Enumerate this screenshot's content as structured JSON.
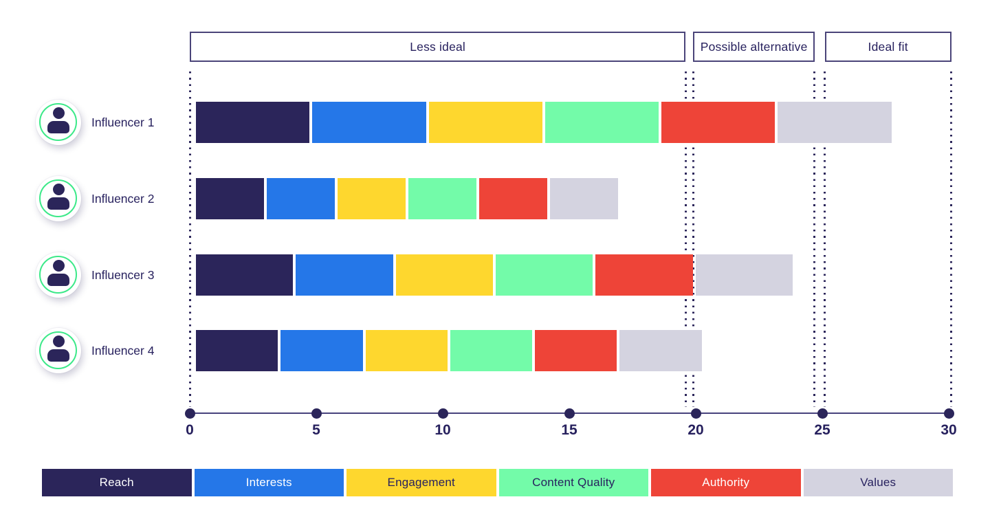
{
  "background": "#ffffff",
  "colors": {
    "text_navy": "#27215e",
    "zone_border": "#4a4479",
    "axis_line": "#47427c",
    "guide_dots": "#2b255a",
    "avatar_ring_green": "#3ce989",
    "avatar_person": "#2b255a"
  },
  "chart_data": {
    "type": "bar",
    "stacked": true,
    "orientation": "horizontal",
    "title": "",
    "xlabel": "",
    "ylabel": "",
    "xlim": [
      0,
      30
    ],
    "x_ticks": [
      0,
      5,
      10,
      15,
      20,
      25,
      30
    ],
    "grid": "dotted vertical guides at zone edges",
    "legend_position": "bottom",
    "categories": [
      "Influencer 1",
      "Influencer 2",
      "Influencer 3",
      "Influencer 4"
    ],
    "series": [
      {
        "name": "Reach",
        "color": "#2b255a",
        "label_color": "#ffffff",
        "values": [
          4.6,
          2.8,
          3.95,
          3.35
        ]
      },
      {
        "name": "Interests",
        "color": "#2577e8",
        "label_color": "#ffffff",
        "values": [
          4.6,
          2.8,
          3.95,
          3.35
        ]
      },
      {
        "name": "Engagement",
        "color": "#fed72e",
        "label_color": "#27215e",
        "values": [
          4.6,
          2.8,
          3.95,
          3.35
        ]
      },
      {
        "name": "Content Quality",
        "color": "#73fba9",
        "label_color": "#27215e",
        "values": [
          4.6,
          2.8,
          3.95,
          3.35
        ]
      },
      {
        "name": "Authority",
        "color": "#ee4438",
        "label_color": "#ffffff",
        "values": [
          4.6,
          2.8,
          3.95,
          3.35
        ]
      },
      {
        "name": "Values",
        "color": "#d4d3e0",
        "label_color": "#27215e",
        "values": [
          4.6,
          2.8,
          3.95,
          3.35
        ]
      }
    ],
    "totals": [
      27.6,
      16.8,
      23.7,
      20.1
    ],
    "zones": [
      {
        "label": "Less ideal",
        "range": [
          0,
          19.6
        ]
      },
      {
        "label": "Possible alternative",
        "range": [
          19.9,
          24.7
        ]
      },
      {
        "label": "Ideal fit",
        "range": [
          25.1,
          30.1
        ]
      }
    ],
    "row_icon": "person-icon"
  }
}
